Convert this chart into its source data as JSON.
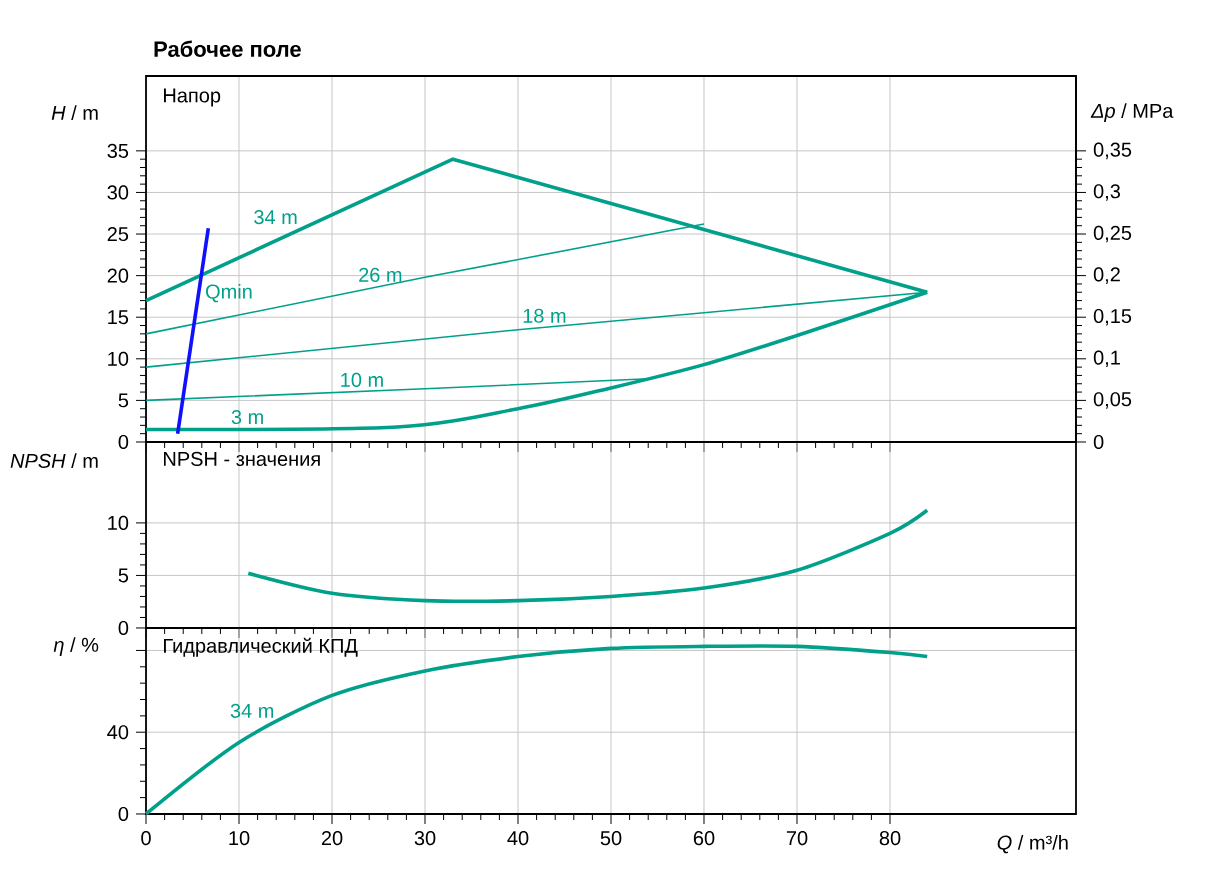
{
  "chart_data": [
    {
      "type": "line",
      "title": "Рабочее поле",
      "subtitle": "Напор",
      "ylabel": "*H* / m",
      "y2label": "*Δp* / MPa",
      "xlim": [
        0,
        100
      ],
      "xticks": [
        0,
        10,
        20,
        30,
        40,
        50,
        60,
        70,
        80
      ],
      "ylim": [
        0,
        44
      ],
      "yticks": [
        0,
        5,
        10,
        15,
        20,
        25,
        30,
        35
      ],
      "y2lim": [
        0,
        0.44
      ],
      "y2ticks": [
        {
          "value": 0,
          "label": "0"
        },
        {
          "value": 0.05,
          "label": "0,05"
        },
        {
          "value": 0.1,
          "label": "0,1"
        },
        {
          "value": 0.15,
          "label": "0,15"
        },
        {
          "value": 0.2,
          "label": "0,2"
        },
        {
          "value": 0.25,
          "label": "0,25"
        },
        {
          "value": 0.3,
          "label": "0,3"
        },
        {
          "value": 0.35,
          "label": "0,35"
        }
      ],
      "grid": true,
      "tick_labels": "y",
      "series": [
        {
          "name": "34 m",
          "color": "#00a08a",
          "x": [
            0,
            33,
            84
          ],
          "values": [
            17,
            34,
            18
          ]
        },
        {
          "name": "3 m",
          "color": "#00a08a",
          "x": [
            0,
            27,
            40,
            50,
            60,
            70,
            84
          ],
          "values": [
            1.5,
            1.8,
            4,
            6.5,
            9.3,
            12.8,
            18
          ]
        },
        {
          "name": "26 m",
          "color": "#00a08a",
          "x": [
            0,
            30,
            60
          ],
          "values": [
            13,
            19.8,
            26.2
          ]
        },
        {
          "name": "18 m",
          "color": "#00a08a",
          "x": [
            0,
            40,
            84
          ],
          "values": [
            9,
            13.5,
            18
          ]
        },
        {
          "name": "10 m",
          "color": "#00a08a",
          "x": [
            0,
            30,
            54
          ],
          "values": [
            5,
            6.4,
            7.6
          ]
        },
        {
          "name": "Qmin",
          "color": "#1010ff",
          "x": [
            3.4,
            6.7
          ],
          "values": [
            1,
            25.7
          ]
        }
      ]
    },
    {
      "type": "line",
      "subtitle": "NPSH - значения",
      "ylabel": "*NPSH* / m",
      "xlim": [
        0,
        100
      ],
      "xticks": [
        0,
        10,
        20,
        30,
        40,
        50,
        60,
        70,
        80
      ],
      "ylim": [
        0,
        17.7
      ],
      "yticks": [
        0,
        5,
        10
      ],
      "grid": true,
      "tick_labels": "y",
      "series": [
        {
          "color": "#00a08a",
          "x": [
            11,
            20,
            30,
            40,
            50,
            60,
            70,
            80,
            84
          ],
          "values": [
            5.2,
            3.3,
            2.6,
            2.6,
            3,
            3.8,
            5.5,
            9,
            11.2
          ]
        }
      ]
    },
    {
      "type": "line",
      "subtitle": "Гидравлический КПД",
      "ylabel": "*η* / %",
      "xlabel": "*Q* / m³/h",
      "xlim": [
        0,
        100
      ],
      "xticks": [
        0,
        10,
        20,
        30,
        40,
        50,
        60,
        70,
        80
      ],
      "ylim": [
        0,
        91
      ],
      "yticks": [
        0,
        40,
        {
          "value": 80,
          "label": null
        }
      ],
      "grid": true,
      "series": [
        {
          "name": "34 m",
          "color": "#00a08a",
          "x": [
            0,
            10,
            20,
            30,
            40,
            50,
            60,
            70,
            80,
            84
          ],
          "values": [
            0,
            35,
            58,
            70,
            77,
            81,
            82,
            82,
            79,
            77
          ]
        }
      ]
    }
  ]
}
